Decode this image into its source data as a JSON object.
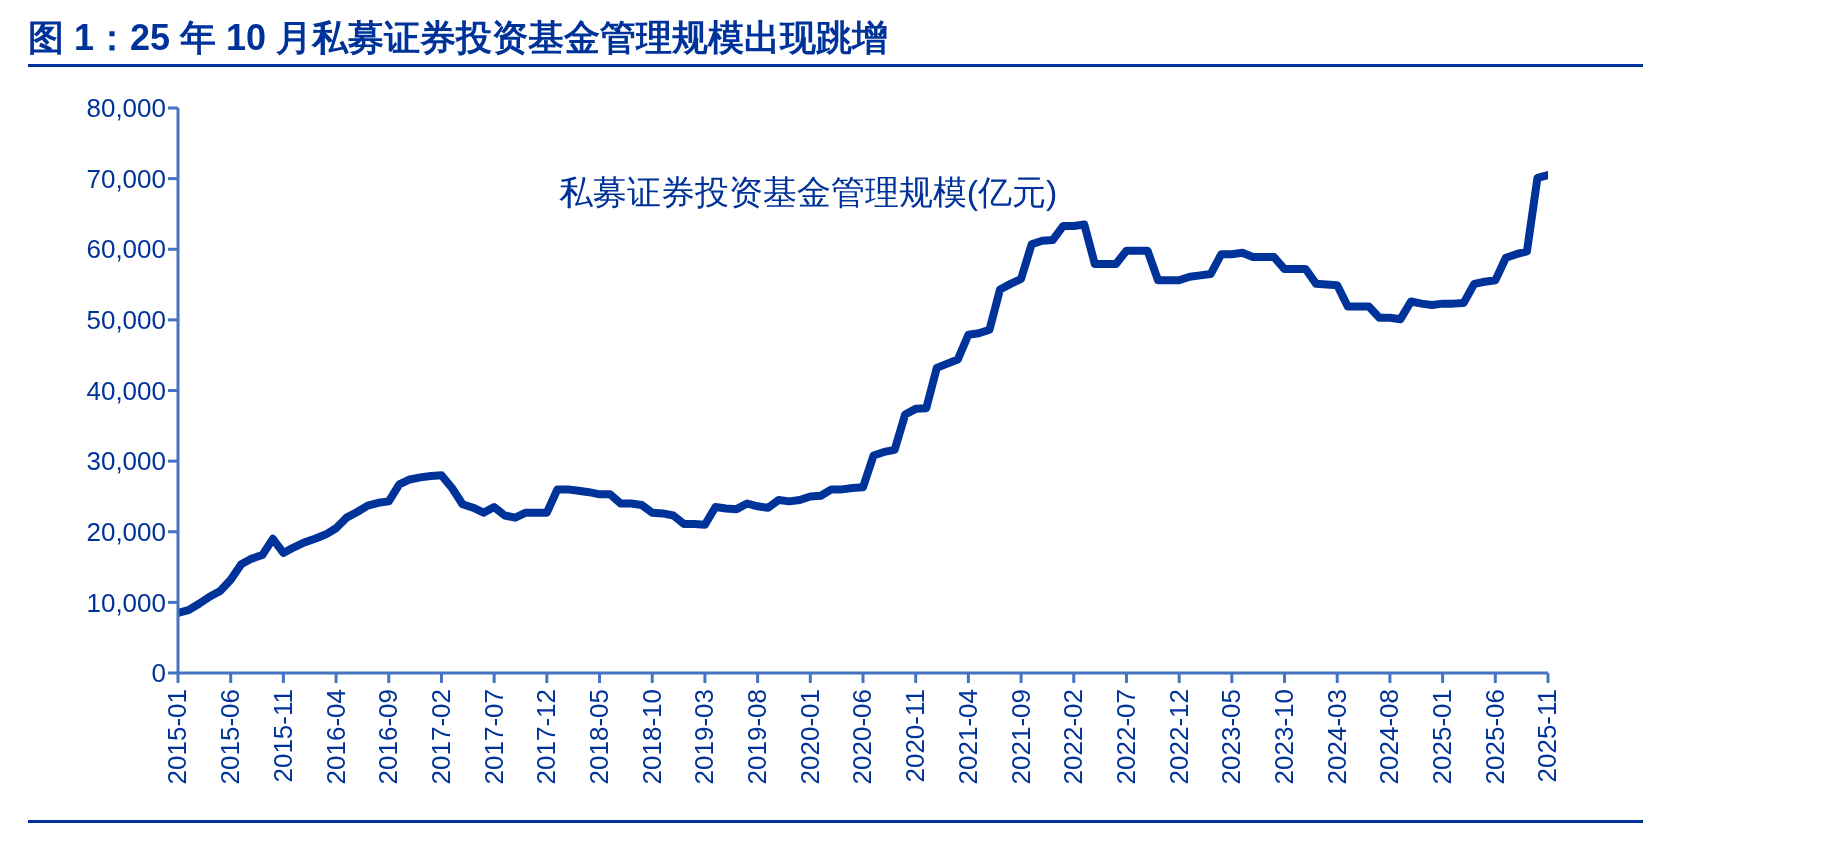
{
  "chart_data": {
    "type": "line",
    "title": "图 1：25 年 10 月私募证券投资基金管理规模出现跳增",
    "categories": [
      "2015-01",
      null,
      null,
      null,
      null,
      "2015-06",
      null,
      null,
      null,
      null,
      "2015-11",
      null,
      null,
      null,
      null,
      "2016-04",
      null,
      null,
      null,
      null,
      "2016-09",
      null,
      null,
      null,
      null,
      "2017-02",
      null,
      null,
      null,
      null,
      "2017-07",
      null,
      null,
      null,
      null,
      "2017-12",
      null,
      null,
      null,
      null,
      "2018-05",
      null,
      null,
      null,
      null,
      "2018-10",
      null,
      null,
      null,
      null,
      "2019-03",
      null,
      null,
      null,
      null,
      "2019-08",
      null,
      null,
      null,
      null,
      "2020-01",
      null,
      null,
      null,
      null,
      "2020-06",
      null,
      null,
      null,
      null,
      "2020-11",
      null,
      null,
      null,
      null,
      "2021-04",
      null,
      null,
      null,
      null,
      "2021-09",
      null,
      null,
      null,
      null,
      "2022-02",
      null,
      null,
      null,
      null,
      "2022-07",
      null,
      null,
      null,
      null,
      "2022-12",
      null,
      null,
      null,
      null,
      "2023-05",
      null,
      null,
      null,
      null,
      "2023-10",
      null,
      null,
      null,
      null,
      "2024-03",
      null,
      null,
      null,
      null,
      "2024-08",
      null,
      null,
      null,
      null,
      "2025-01",
      null,
      null,
      null,
      null,
      "2025-06",
      null,
      null,
      null,
      null,
      "2025-11"
    ],
    "series": [
      {
        "name": "私募证券投资基金管理规模(亿元)",
        "color": "#003399",
        "values": [
          8500,
          8900,
          9800,
          10800,
          11600,
          13200,
          15400,
          16200,
          16700,
          19000,
          17000,
          17800,
          18500,
          19000,
          19600,
          20500,
          22000,
          22800,
          23700,
          24100,
          24300,
          26700,
          27400,
          27700,
          27900,
          28000,
          26200,
          23900,
          23400,
          22700,
          23500,
          22300,
          22000,
          22700,
          22700,
          22700,
          26000,
          26000,
          25800,
          25600,
          25300,
          25300,
          24000,
          24000,
          23800,
          22700,
          22600,
          22300,
          21100,
          21100,
          21000,
          23500,
          23300,
          23200,
          24000,
          23600,
          23400,
          24500,
          24300,
          24500,
          25000,
          25100,
          26000,
          26000,
          26200,
          26300,
          30800,
          31300,
          31600,
          36600,
          37400,
          37500,
          43200,
          43800,
          44400,
          47900,
          48100,
          48600,
          54300,
          55100,
          55800,
          60700,
          61200,
          61300,
          63300,
          63300,
          63500,
          57900,
          57900,
          57900,
          59800,
          59800,
          59800,
          55600,
          55600,
          55600,
          56100,
          56300,
          56500,
          59300,
          59300,
          59500,
          58900,
          58900,
          58900,
          57200,
          57200,
          57200,
          55100,
          55000,
          54900,
          51900,
          51900,
          51900,
          50300,
          50300,
          50100,
          52600,
          52300,
          52100,
          52300,
          52300,
          52400,
          55100,
          55400,
          55600,
          58800,
          59300,
          59700,
          70100,
          70500
        ]
      }
    ],
    "ylim": [
      0,
      80000
    ],
    "yticks": [
      0,
      {
        "value": 10000,
        "label": "10,000"
      },
      {
        "value": 20000,
        "label": "20,000"
      },
      {
        "value": 30000,
        "label": "30,000"
      },
      {
        "value": 40000,
        "label": "40,000"
      },
      {
        "value": 50000,
        "label": "50,000"
      },
      {
        "value": 60000,
        "label": "60,000"
      },
      {
        "value": 70000,
        "label": "70,000"
      },
      {
        "value": 80000,
        "label": "80,000"
      }
    ],
    "legend": "top"
  }
}
